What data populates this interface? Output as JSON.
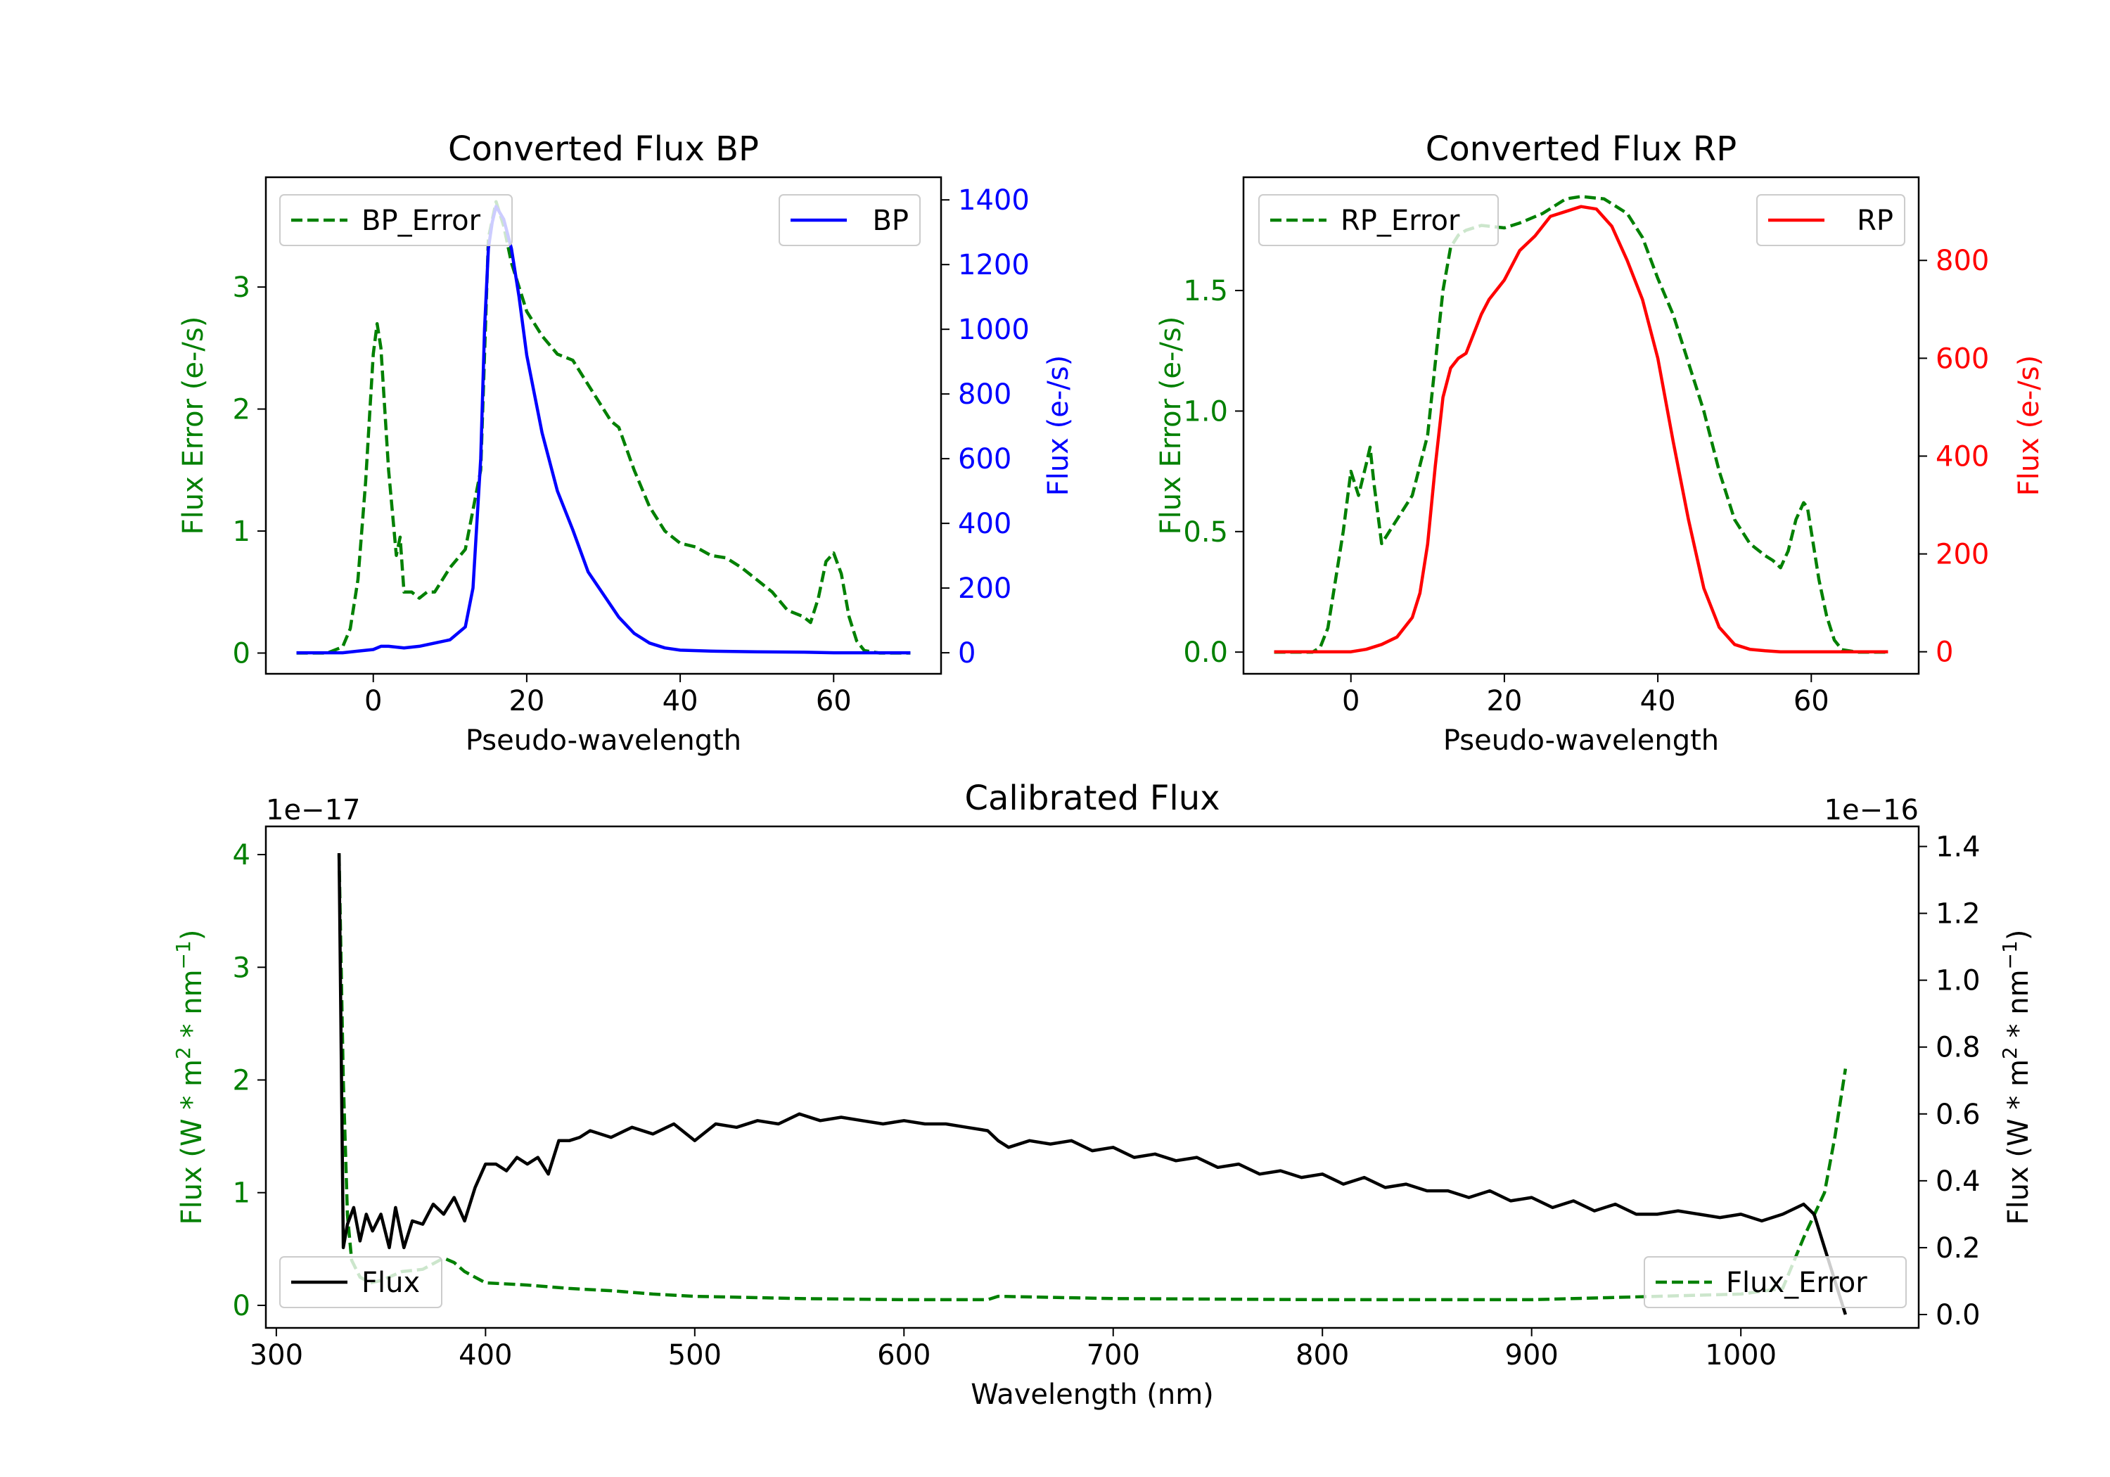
{
  "chart_data": [
    {
      "type": "line",
      "title": "Converted Flux BP",
      "xlabel": "Pseudo-wavelength",
      "ylabel_left": "Flux Error (e-/s)",
      "ylabel_right": "Flux (e-/s)",
      "xlim": [
        -14,
        74
      ],
      "ylim_left": [
        -0.17,
        3.9
      ],
      "ylim_right": [
        -65,
        1470
      ],
      "x_ticks": [
        0,
        20,
        40,
        60
      ],
      "y_ticks_left": [
        0,
        1,
        2,
        3
      ],
      "y_ticks_right": [
        0,
        200,
        400,
        600,
        800,
        1000,
        1200,
        1400
      ],
      "legend_left": {
        "label": "BP_Error",
        "position": "top-left"
      },
      "legend_right": {
        "label": "BP",
        "position": "top-right"
      },
      "series": [
        {
          "name": "BP_Error",
          "axis": "left",
          "color": "#008000",
          "style": "dashed",
          "x": [
            -10,
            -6,
            -4,
            -3,
            -2,
            -1,
            0,
            0.5,
            1,
            2,
            3,
            3.5,
            4,
            5,
            6,
            7,
            8,
            10,
            12,
            14,
            15,
            16,
            17,
            18,
            20,
            22,
            24,
            26,
            28,
            30,
            31,
            32,
            34,
            36,
            38,
            40,
            42,
            44,
            46,
            48,
            50,
            52,
            54,
            56,
            57,
            58,
            59,
            60,
            61,
            62,
            63,
            64,
            66,
            70
          ],
          "y": [
            0,
            0,
            0.05,
            0.2,
            0.6,
            1.4,
            2.45,
            2.7,
            2.5,
            1.5,
            0.8,
            0.95,
            0.5,
            0.5,
            0.45,
            0.5,
            0.5,
            0.7,
            0.85,
            1.5,
            3.4,
            3.7,
            3.5,
            3.2,
            2.8,
            2.6,
            2.45,
            2.4,
            2.2,
            2.0,
            1.9,
            1.85,
            1.5,
            1.2,
            1.0,
            0.9,
            0.87,
            0.8,
            0.78,
            0.7,
            0.6,
            0.5,
            0.35,
            0.3,
            0.25,
            0.45,
            0.75,
            0.82,
            0.65,
            0.3,
            0.1,
            0.02,
            0,
            0
          ]
        },
        {
          "name": "BP",
          "axis": "right",
          "color": "#0000ff",
          "style": "solid",
          "x": [
            -10,
            -4,
            -2,
            0,
            1,
            2,
            4,
            6,
            8,
            10,
            12,
            13,
            14,
            14.5,
            15,
            15.5,
            16,
            17,
            18,
            19,
            20,
            22,
            24,
            26,
            28,
            30,
            32,
            34,
            35,
            36,
            38,
            40,
            44,
            50,
            56,
            60,
            64,
            70
          ],
          "y": [
            0,
            0,
            5,
            10,
            20,
            20,
            15,
            20,
            30,
            40,
            80,
            200,
            600,
            1000,
            1250,
            1330,
            1380,
            1340,
            1250,
            1100,
            920,
            680,
            500,
            380,
            250,
            180,
            110,
            60,
            45,
            30,
            15,
            8,
            5,
            3,
            2,
            0,
            0,
            0
          ]
        }
      ]
    },
    {
      "type": "line",
      "title": "Converted Flux RP",
      "xlabel": "Pseudo-wavelength",
      "ylabel_left": "Flux Error (e-/s)",
      "ylabel_right": "Flux (e-/s)",
      "xlim": [
        -14,
        74
      ],
      "ylim_left": [
        -0.09,
        1.97
      ],
      "ylim_right": [
        -45,
        970
      ],
      "x_ticks": [
        0,
        20,
        40,
        60
      ],
      "y_ticks_left": [
        0.0,
        0.5,
        1.0,
        1.5
      ],
      "y_ticks_right": [
        0,
        200,
        400,
        600,
        800
      ],
      "legend_left": {
        "label": "RP_Error",
        "position": "top-left"
      },
      "legend_right": {
        "label": "RP",
        "position": "top-right"
      },
      "series": [
        {
          "name": "RP_Error",
          "axis": "left",
          "color": "#008000",
          "style": "dashed",
          "x": [
            -10,
            -5,
            -4,
            -3,
            -2,
            -1,
            0,
            1,
            2,
            2.5,
            3,
            4,
            5,
            6,
            8,
            10,
            11,
            12,
            13,
            14,
            15,
            17,
            20,
            22,
            25,
            28,
            30,
            33,
            36,
            38,
            40,
            42,
            44,
            46,
            48,
            50,
            52,
            54,
            55,
            56,
            57,
            58,
            59,
            59.5,
            60,
            61,
            62,
            63,
            64,
            66,
            70
          ],
          "y": [
            0,
            0,
            0.02,
            0.1,
            0.3,
            0.5,
            0.75,
            0.65,
            0.78,
            0.85,
            0.7,
            0.45,
            0.5,
            0.55,
            0.65,
            0.9,
            1.2,
            1.5,
            1.68,
            1.73,
            1.75,
            1.77,
            1.76,
            1.78,
            1.82,
            1.88,
            1.89,
            1.88,
            1.82,
            1.72,
            1.55,
            1.4,
            1.2,
            1.0,
            0.75,
            0.55,
            0.45,
            0.4,
            0.38,
            0.35,
            0.42,
            0.55,
            0.62,
            0.6,
            0.5,
            0.3,
            0.15,
            0.05,
            0.01,
            0,
            0
          ]
        },
        {
          "name": "RP",
          "axis": "right",
          "color": "#ff0000",
          "style": "solid",
          "x": [
            -10,
            -4,
            -2,
            0,
            2,
            4,
            6,
            8,
            9,
            10,
            11,
            12,
            13,
            14,
            15,
            16,
            17,
            18,
            20,
            22,
            24,
            26,
            28,
            30,
            32,
            34,
            36,
            38,
            40,
            42,
            44,
            46,
            48,
            50,
            52,
            54,
            56,
            58,
            60,
            62,
            64,
            66,
            70
          ],
          "y": [
            0,
            0,
            0,
            0,
            5,
            15,
            30,
            70,
            120,
            220,
            380,
            520,
            580,
            600,
            610,
            650,
            690,
            720,
            760,
            820,
            850,
            890,
            900,
            910,
            905,
            870,
            800,
            720,
            600,
            430,
            270,
            130,
            50,
            15,
            5,
            2,
            0,
            0,
            0,
            0,
            0,
            0,
            0
          ]
        }
      ]
    },
    {
      "type": "line",
      "title": "Calibrated Flux",
      "xlabel": "Wavelength (nm)",
      "ylabel_left": "Flux (W * m^2 * nm^-1)",
      "ylabel_right": "Flux (W * m^2 * nm^-1)",
      "ylabel_left_text": "Flux (W * m",
      "ylabel_left_sup": "2",
      "ylabel_left_mid": " * nm",
      "ylabel_left_sup2": "−1",
      "ylabel_left_end": ")",
      "left_offset": "1e−17",
      "right_offset": "1e−16",
      "xlim": [
        295,
        1085
      ],
      "ylim_left": [
        -0.2,
        4.25
      ],
      "ylim_right": [
        -0.04,
        1.46
      ],
      "x_ticks": [
        300,
        400,
        500,
        600,
        700,
        800,
        900,
        1000
      ],
      "y_ticks_left": [
        0,
        1,
        2,
        3,
        4
      ],
      "y_ticks_right": [
        "0.0",
        "0.2",
        "0.4",
        "0.6",
        "0.8",
        "1.0",
        "1.2",
        "1.4"
      ],
      "legend_left": {
        "label": "Flux",
        "position": "bottom-left"
      },
      "legend_right": {
        "label": "Flux_Error",
        "position": "bottom-right"
      },
      "series": [
        {
          "name": "Flux_Error",
          "axis": "left",
          "color": "#008000",
          "style": "dashed",
          "x": [
            330,
            332,
            334,
            336,
            340,
            345,
            350,
            360,
            370,
            380,
            385,
            390,
            400,
            420,
            440,
            460,
            480,
            500,
            550,
            600,
            640,
            645,
            700,
            800,
            900,
            960,
            1000,
            1020,
            1030,
            1040,
            1045,
            1050
          ],
          "y": [
            4.0,
            2.0,
            0.8,
            0.4,
            0.25,
            0.2,
            0.22,
            0.3,
            0.32,
            0.42,
            0.38,
            0.3,
            0.2,
            0.18,
            0.15,
            0.13,
            0.1,
            0.08,
            0.06,
            0.05,
            0.05,
            0.08,
            0.06,
            0.05,
            0.05,
            0.08,
            0.1,
            0.15,
            0.6,
            1.0,
            1.5,
            2.1
          ]
        },
        {
          "name": "Flux",
          "axis": "right",
          "color": "#000000",
          "style": "solid",
          "x": [
            330,
            332,
            334,
            337,
            340,
            343,
            346,
            350,
            354,
            357,
            361,
            365,
            370,
            375,
            380,
            385,
            390,
            395,
            400,
            405,
            410,
            415,
            420,
            425,
            430,
            435,
            440,
            445,
            450,
            460,
            470,
            480,
            490,
            500,
            510,
            520,
            530,
            540,
            550,
            560,
            570,
            580,
            590,
            600,
            610,
            620,
            630,
            640,
            645,
            650,
            660,
            670,
            680,
            690,
            700,
            710,
            720,
            730,
            740,
            750,
            760,
            770,
            780,
            790,
            800,
            810,
            820,
            830,
            840,
            850,
            860,
            870,
            880,
            890,
            900,
            910,
            920,
            930,
            940,
            950,
            960,
            970,
            980,
            990,
            1000,
            1010,
            1020,
            1030,
            1035,
            1040,
            1045,
            1050
          ],
          "y": [
            1.38,
            0.2,
            0.27,
            0.32,
            0.22,
            0.3,
            0.25,
            0.3,
            0.2,
            0.32,
            0.2,
            0.28,
            0.27,
            0.33,
            0.3,
            0.35,
            0.28,
            0.38,
            0.45,
            0.45,
            0.43,
            0.47,
            0.45,
            0.47,
            0.42,
            0.52,
            0.52,
            0.53,
            0.55,
            0.53,
            0.56,
            0.54,
            0.57,
            0.52,
            0.57,
            0.56,
            0.58,
            0.57,
            0.6,
            0.58,
            0.59,
            0.58,
            0.57,
            0.58,
            0.57,
            0.57,
            0.56,
            0.55,
            0.52,
            0.5,
            0.52,
            0.51,
            0.52,
            0.49,
            0.5,
            0.47,
            0.48,
            0.46,
            0.47,
            0.44,
            0.45,
            0.42,
            0.43,
            0.41,
            0.42,
            0.39,
            0.41,
            0.38,
            0.39,
            0.37,
            0.37,
            0.35,
            0.37,
            0.34,
            0.35,
            0.32,
            0.34,
            0.31,
            0.33,
            0.3,
            0.3,
            0.31,
            0.3,
            0.29,
            0.3,
            0.28,
            0.3,
            0.33,
            0.3,
            0.2,
            0.1,
            0.0
          ]
        }
      ]
    }
  ],
  "colors": {
    "error": "#008000",
    "bp": "#0000ff",
    "rp": "#ff0000",
    "flux": "#000000",
    "axis": "#000000"
  }
}
